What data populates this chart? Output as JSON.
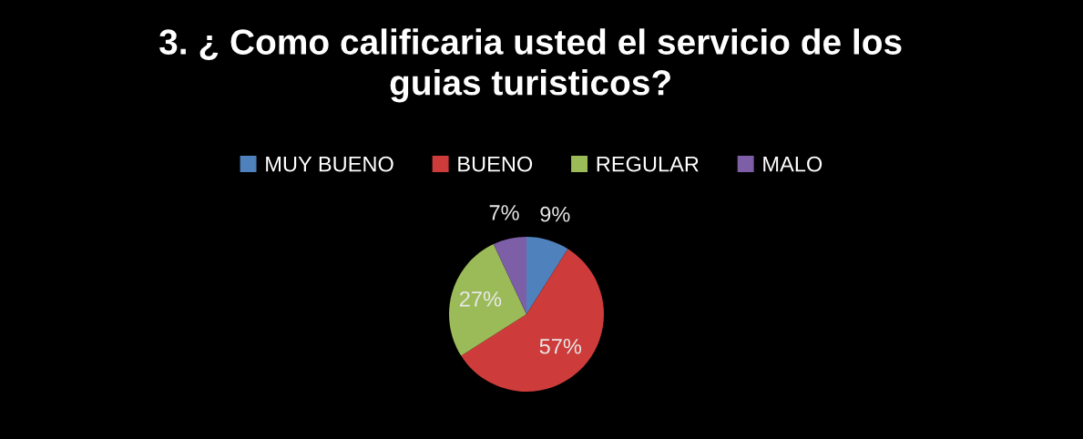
{
  "chart_data": {
    "type": "pie",
    "title": "3. ¿ Como calificaria usted el servicio de los\nguias turisticos?",
    "categories": [
      "MUY BUENO",
      "BUENO",
      "REGULAR",
      "MALO"
    ],
    "values": [
      9,
      57,
      27,
      7
    ],
    "colors": [
      "#4f81bd",
      "#cd3c3a",
      "#9bbb59",
      "#7d5fa8"
    ],
    "value_labels": [
      "9%",
      "57%",
      "27%",
      "7%"
    ],
    "legend": "top"
  }
}
